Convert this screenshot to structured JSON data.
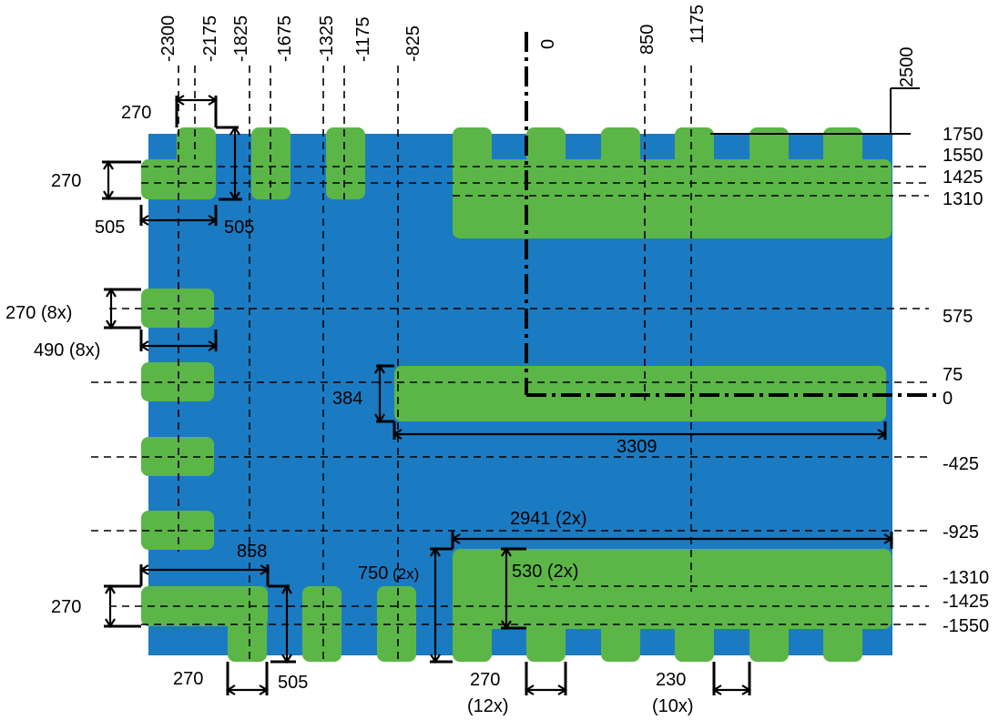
{
  "colors": {
    "substrate": "#1b7bc2",
    "pad": "#5cb647",
    "line": "#000000"
  },
  "top_labels": [
    "-2300",
    "-2175",
    "-1825",
    "-1675",
    "-1325",
    "-1175",
    "-825",
    "0",
    "850",
    "1175",
    "2500"
  ],
  "right_labels": [
    "1750",
    "1550",
    "1425",
    "1310",
    "575",
    "75",
    "0",
    "-425",
    "-925",
    "-1310",
    "-1425",
    "-1550"
  ],
  "dimensions": {
    "top_left_pad_width": "270",
    "top_left_height": "270",
    "top_left_width_a": "505",
    "top_left_width_b": "505",
    "left_pad_height": "270 (8x)",
    "left_pad_width": "490 (8x)",
    "center_bar_height": "384",
    "center_bar_width": "3309",
    "big_block_width": "2941 (2x)",
    "big_block_height": "750",
    "big_block_height_mult": "(2x)",
    "big_block_inner": "530 (2x)",
    "bottom_left_width": "858",
    "bottom_left_height": "270",
    "bottom_width_505": "505",
    "bottom_tab_width": "270",
    "bottom_tab_count": "(12x)",
    "bottom_gap_width": "230",
    "bottom_gap_count": "(10x)"
  }
}
